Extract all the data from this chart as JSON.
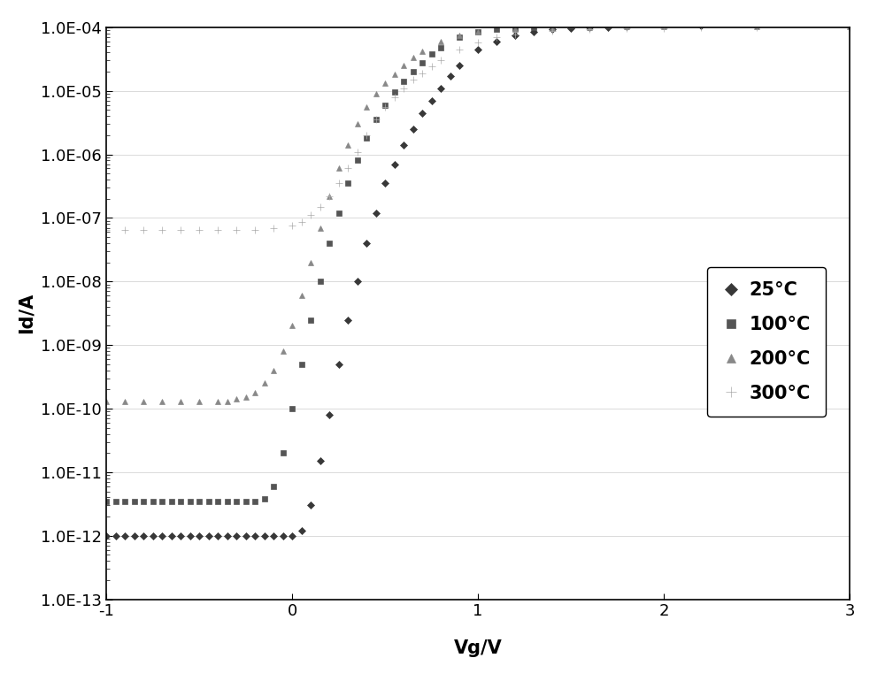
{
  "xlabel": "Vg/V",
  "ylabel": "Id/A",
  "xlim": [
    -1,
    3
  ],
  "ylim_log": [
    -13,
    -4
  ],
  "background_color": "#ffffff",
  "legend_labels": [
    "25°C",
    "100°C",
    "200°C",
    "300°C"
  ],
  "colors": [
    "#383838",
    "#555555",
    "#888888",
    "#aaaaaa"
  ],
  "markers": [
    "D",
    "s",
    "^",
    "+"
  ],
  "markersizes": [
    4,
    4,
    4,
    6
  ],
  "legend_fontsize": 15,
  "axis_label_fontsize": 15,
  "tick_fontsize": 13,
  "series_25C": {
    "vg": [
      -1.0,
      -0.95,
      -0.9,
      -0.85,
      -0.8,
      -0.75,
      -0.7,
      -0.65,
      -0.6,
      -0.55,
      -0.5,
      -0.45,
      -0.4,
      -0.35,
      -0.3,
      -0.25,
      -0.2,
      -0.15,
      -0.1,
      -0.05,
      0.0,
      0.05,
      0.1,
      0.15,
      0.2,
      0.25,
      0.3,
      0.35,
      0.4,
      0.45,
      0.5,
      0.55,
      0.6,
      0.65,
      0.7,
      0.75,
      0.8,
      0.85,
      0.9,
      1.0,
      1.1,
      1.2,
      1.3,
      1.4,
      1.5,
      1.6,
      1.7,
      1.8,
      2.0,
      2.2,
      2.5,
      3.0
    ],
    "id": [
      1e-12,
      1e-12,
      1e-12,
      1e-12,
      1e-12,
      1e-12,
      1e-12,
      1e-12,
      1e-12,
      1e-12,
      1e-12,
      1e-12,
      1e-12,
      1e-12,
      1e-12,
      1e-12,
      1e-12,
      1e-12,
      1e-12,
      1e-12,
      1e-12,
      1.2e-12,
      3e-12,
      1.5e-11,
      8e-11,
      5e-10,
      2.5e-09,
      1e-08,
      4e-08,
      1.2e-07,
      3.5e-07,
      7e-07,
      1.4e-06,
      2.5e-06,
      4.5e-06,
      7e-06,
      1.1e-05,
      1.7e-05,
      2.5e-05,
      4.5e-05,
      6e-05,
      7.5e-05,
      8.5e-05,
      9.2e-05,
      9.6e-05,
      9.8e-05,
      0.0001,
      0.000102,
      0.000105,
      0.000107,
      0.000109,
      0.00011
    ]
  },
  "series_100C": {
    "vg": [
      -1.0,
      -0.95,
      -0.9,
      -0.85,
      -0.8,
      -0.75,
      -0.7,
      -0.65,
      -0.6,
      -0.55,
      -0.5,
      -0.45,
      -0.4,
      -0.35,
      -0.3,
      -0.25,
      -0.2,
      -0.15,
      -0.1,
      -0.05,
      0.0,
      0.05,
      0.1,
      0.15,
      0.2,
      0.25,
      0.3,
      0.35,
      0.4,
      0.45,
      0.5,
      0.55,
      0.6,
      0.65,
      0.7,
      0.75,
      0.8,
      0.9,
      1.0,
      1.1,
      1.2,
      1.3,
      1.4,
      1.5,
      1.7,
      2.0,
      2.5,
      3.0
    ],
    "id": [
      3.5e-12,
      3.5e-12,
      3.5e-12,
      3.5e-12,
      3.5e-12,
      3.5e-12,
      3.5e-12,
      3.5e-12,
      3.5e-12,
      3.5e-12,
      3.5e-12,
      3.5e-12,
      3.5e-12,
      3.5e-12,
      3.5e-12,
      3.5e-12,
      3.5e-12,
      3.8e-12,
      6e-12,
      2e-11,
      1e-10,
      5e-10,
      2.5e-09,
      1e-08,
      4e-08,
      1.2e-07,
      3.5e-07,
      8e-07,
      1.8e-06,
      3.5e-06,
      6e-06,
      9.5e-06,
      1.4e-05,
      2e-05,
      2.8e-05,
      3.8e-05,
      4.8e-05,
      7e-05,
      8.5e-05,
      9.2e-05,
      9.7e-05,
      0.0001,
      0.000102,
      0.000105,
      0.000107,
      0.000109,
      0.00011,
      0.00011
    ]
  },
  "series_200C": {
    "vg": [
      -1.0,
      -0.9,
      -0.8,
      -0.7,
      -0.6,
      -0.5,
      -0.4,
      -0.35,
      -0.3,
      -0.25,
      -0.2,
      -0.15,
      -0.1,
      -0.05,
      0.0,
      0.05,
      0.1,
      0.15,
      0.2,
      0.25,
      0.3,
      0.35,
      0.4,
      0.45,
      0.5,
      0.55,
      0.6,
      0.65,
      0.7,
      0.8,
      0.9,
      1.0,
      1.2,
      1.4,
      1.6,
      1.8,
      2.0,
      2.5,
      3.0
    ],
    "id": [
      1.3e-10,
      1.3e-10,
      1.3e-10,
      1.3e-10,
      1.3e-10,
      1.3e-10,
      1.3e-10,
      1.3e-10,
      1.4e-10,
      1.5e-10,
      1.8e-10,
      2.5e-10,
      4e-10,
      8e-10,
      2e-09,
      6e-09,
      2e-08,
      7e-08,
      2.2e-07,
      6e-07,
      1.4e-06,
      3e-06,
      5.5e-06,
      9e-06,
      1.3e-05,
      1.8e-05,
      2.5e-05,
      3.3e-05,
      4.2e-05,
      6e-05,
      7.5e-05,
      8.5e-05,
      9.3e-05,
      9.7e-05,
      9.9e-05,
      0.000101,
      0.000102,
      0.000102,
      0.000102
    ]
  },
  "series_300C": {
    "vg": [
      -1.0,
      -0.9,
      -0.8,
      -0.7,
      -0.6,
      -0.5,
      -0.4,
      -0.3,
      -0.2,
      -0.1,
      0.0,
      0.05,
      0.1,
      0.15,
      0.2,
      0.25,
      0.3,
      0.35,
      0.4,
      0.45,
      0.5,
      0.55,
      0.6,
      0.65,
      0.7,
      0.75,
      0.8,
      0.9,
      1.0,
      1.1,
      1.2,
      1.4,
      1.6,
      1.8,
      2.0,
      2.2,
      2.5,
      3.0
    ],
    "id": [
      6.5e-08,
      6.5e-08,
      6.5e-08,
      6.5e-08,
      6.5e-08,
      6.5e-08,
      6.5e-08,
      6.5e-08,
      6.5e-08,
      6.8e-08,
      7.5e-08,
      8.5e-08,
      1.1e-07,
      1.5e-07,
      2.2e-07,
      3.5e-07,
      6e-07,
      1.1e-06,
      2e-06,
      3.5e-06,
      5.5e-06,
      8e-06,
      1.1e-05,
      1.5e-05,
      1.9e-05,
      2.4e-05,
      3e-05,
      4.5e-05,
      5.8e-05,
      7e-05,
      7.8e-05,
      8.8e-05,
      9.3e-05,
      9.6e-05,
      9.75e-05,
      9.82e-05,
      9.88e-05,
      9.9e-05
    ]
  }
}
